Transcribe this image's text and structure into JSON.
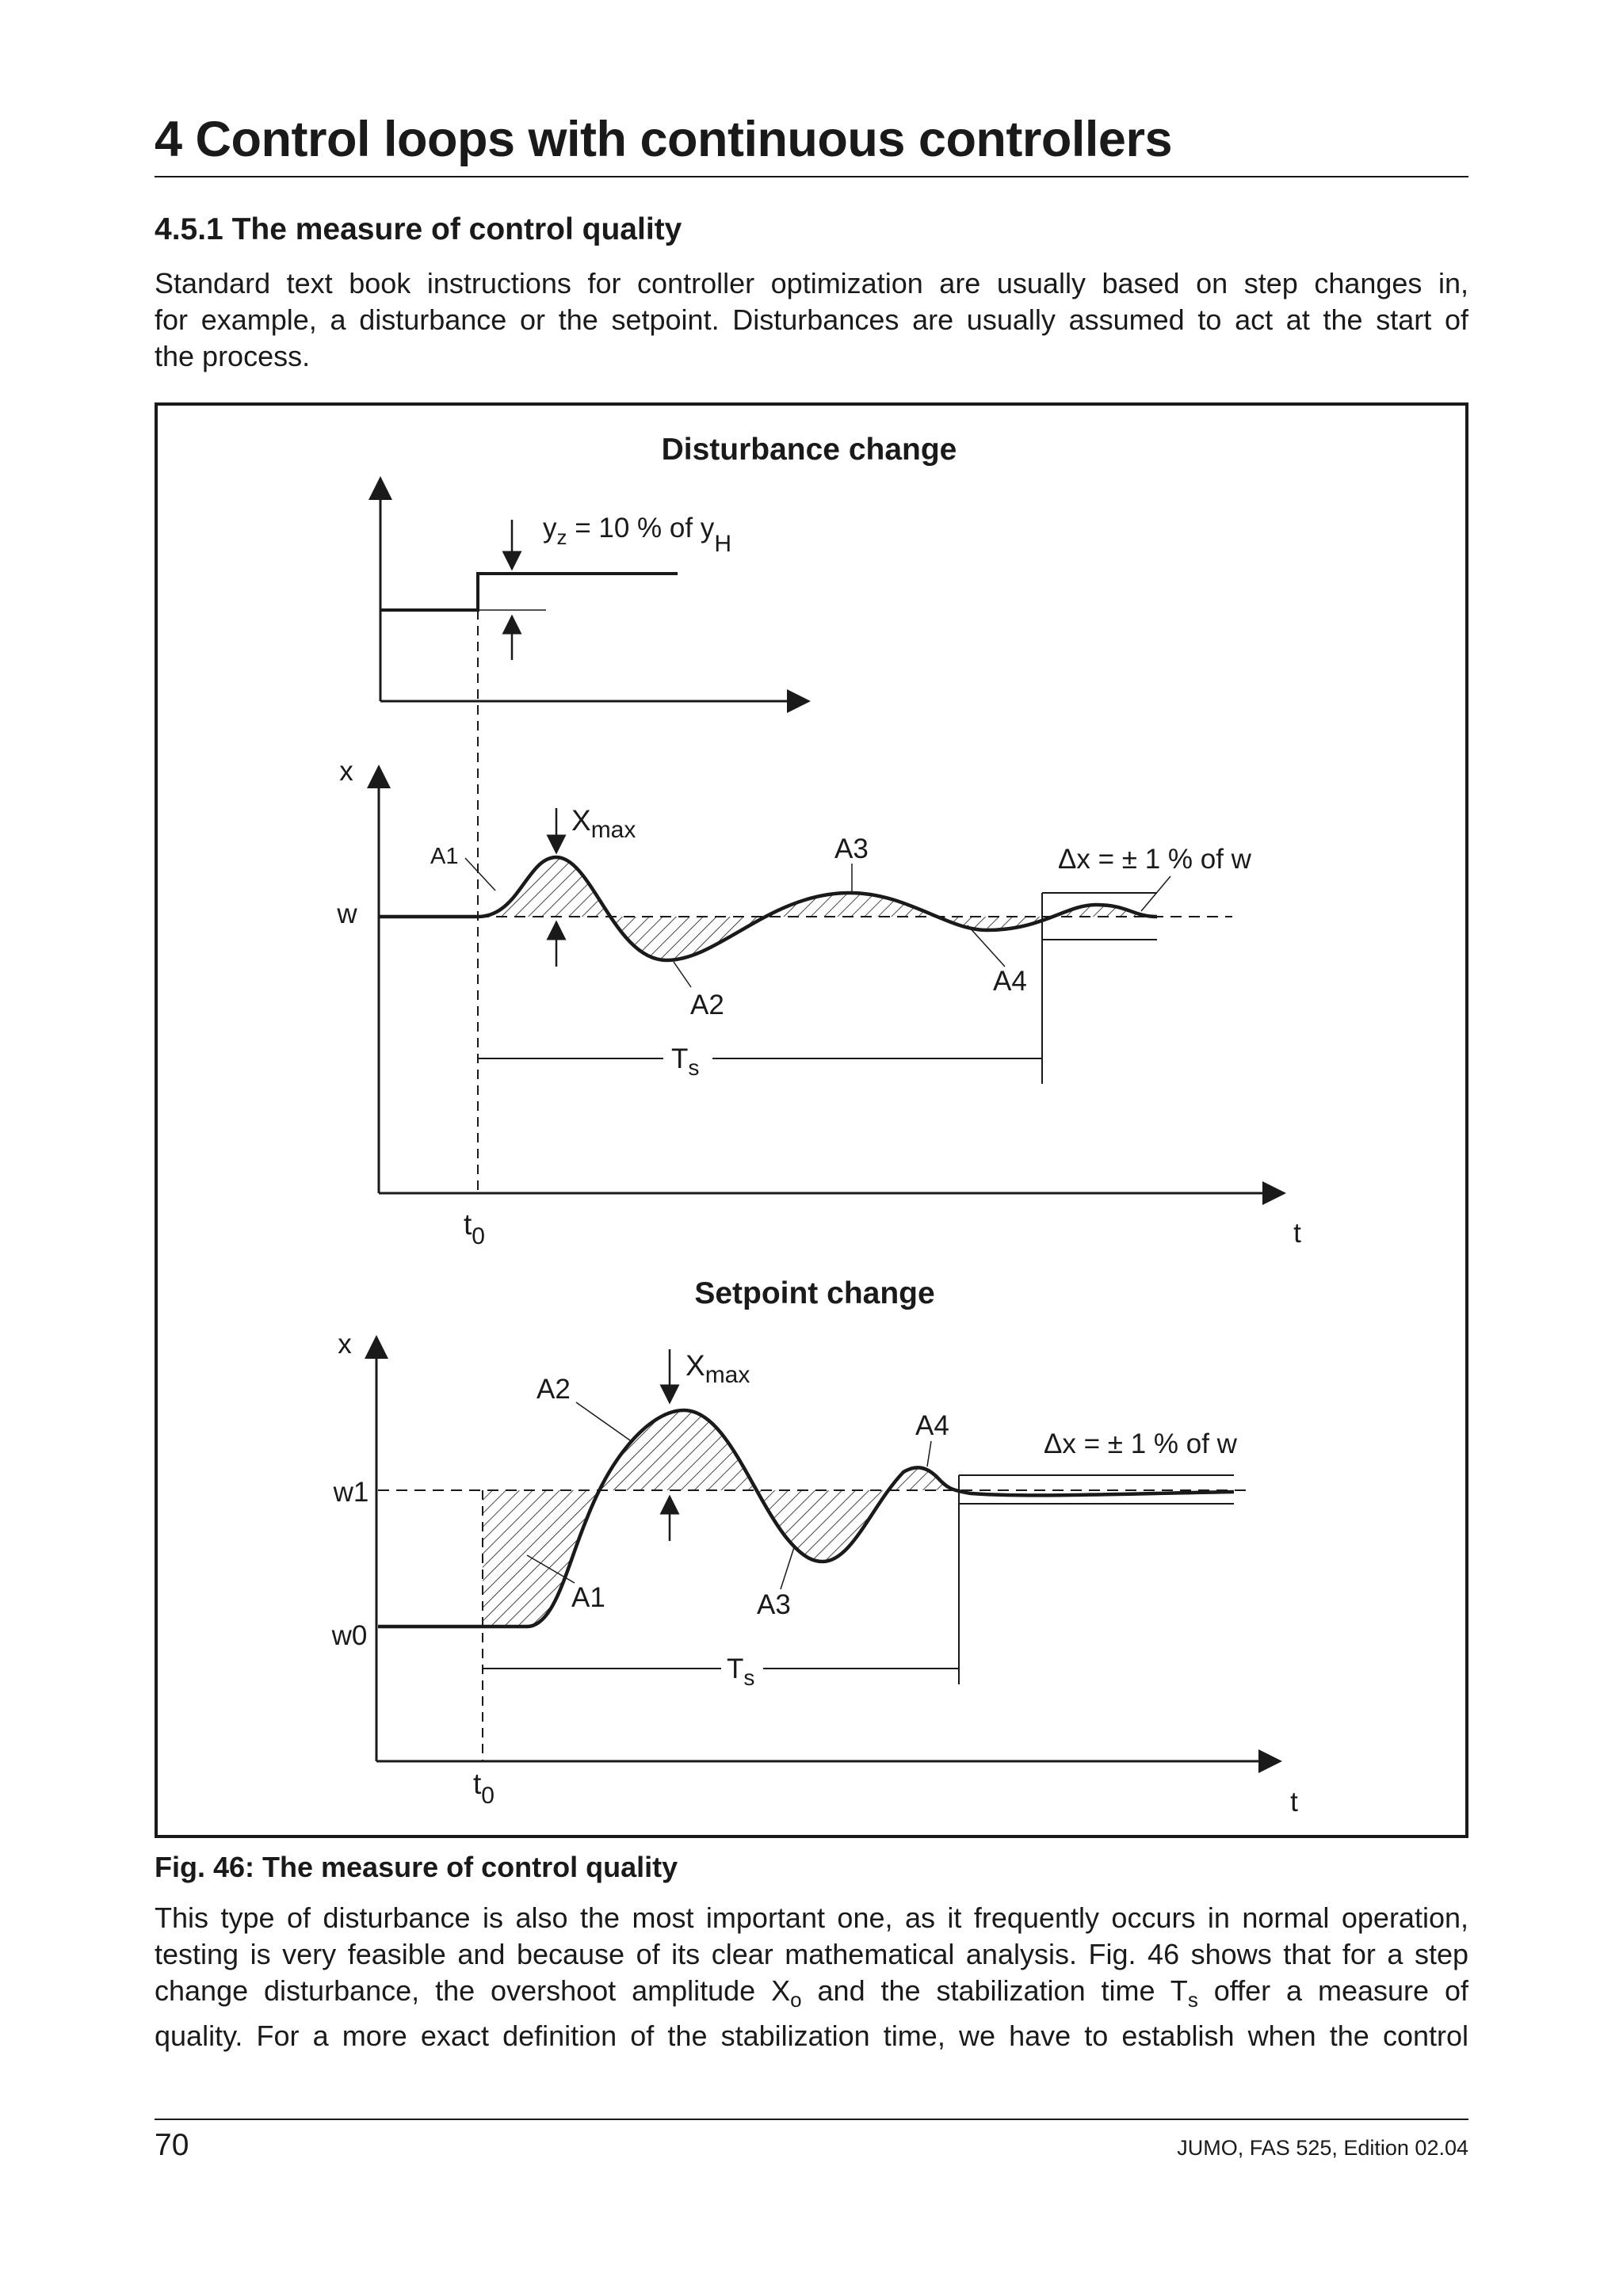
{
  "header": {
    "chapter_title": "4 Control loops with continuous controllers",
    "section_title": "4.5.1 The measure of control quality"
  },
  "intro_paragraph": {
    "lines": [
      "Standard text book instructions for controller optimization are usually based on step changes in,",
      "for example, a disturbance or the setpoint. Disturbances are usually assumed to act at the start of",
      "the process."
    ]
  },
  "figure": {
    "caption": "Fig. 46: The measure of control quality",
    "disturbance": {
      "title": "Disturbance change",
      "step_label_main": "y",
      "step_label_sub": "z",
      "step_label_rest": " = 10 % of y",
      "step_label_sub2": "H",
      "y_axis_label": "x",
      "w_label": "w",
      "xmax_main": "X",
      "xmax_sub": "max",
      "area_labels": [
        "A1",
        "A2",
        "A3",
        "A4"
      ],
      "band_label": "Δx = ± 1 % of w",
      "ts_main": "T",
      "ts_sub": "s",
      "t0_main": "t",
      "t0_sub": "0",
      "t_axis_label": "t"
    },
    "setpoint": {
      "title": "Setpoint change",
      "y_axis_label": "x",
      "w1_label": "w1",
      "w0_label": "w0",
      "xmax_main": "X",
      "xmax_sub": "max",
      "area_labels": [
        "A1",
        "A2",
        "A3",
        "A4"
      ],
      "band_label": "Δx = ± 1 % of w",
      "ts_main": "T",
      "ts_sub": "s",
      "t0_main": "t",
      "t0_sub": "0",
      "t_axis_label": "t"
    }
  },
  "body_paragraph": {
    "line1": "This type of disturbance is also the most important one, as it frequently occurs in normal operation,",
    "line2": "testing is very feasible and because of its clear mathematical analysis. Fig. 46 shows that for a step",
    "line3_a": "change disturbance, the overshoot amplitude X",
    "line3_sub1": "o",
    "line3_b": " and the stabilization time T",
    "line3_sub2": "s",
    "line3_c": " offer a measure of",
    "line4": "quality. For a more exact definition of the stabilization time, we have to establish when the control"
  },
  "footer": {
    "page_number": "70",
    "publication": "JUMO, FAS 525, Edition 02.04"
  }
}
